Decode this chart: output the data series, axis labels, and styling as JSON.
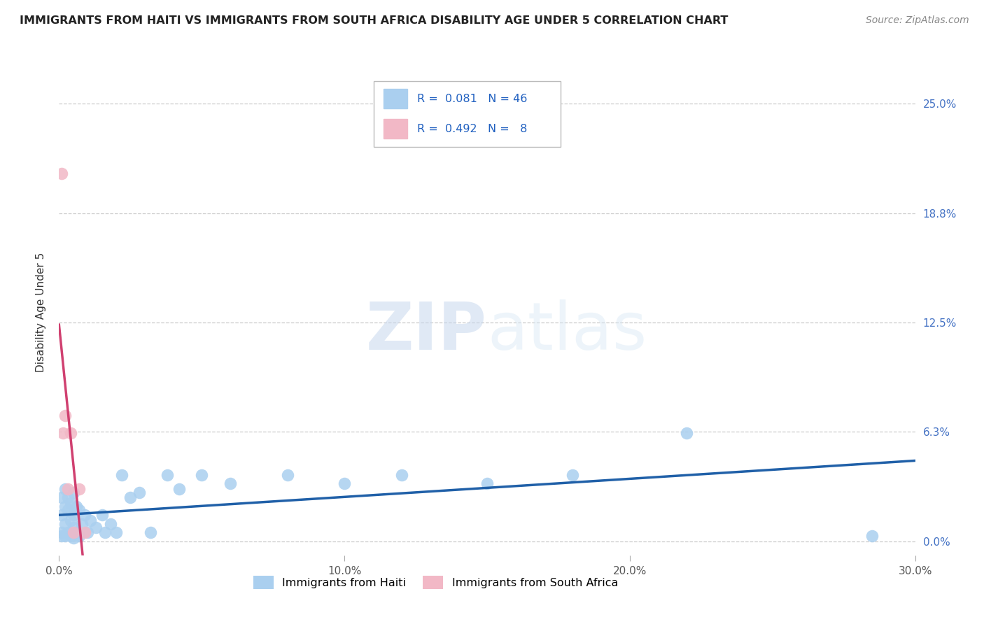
{
  "title": "IMMIGRANTS FROM HAITI VS IMMIGRANTS FROM SOUTH AFRICA DISABILITY AGE UNDER 5 CORRELATION CHART",
  "source": "Source: ZipAtlas.com",
  "ylabel": "Disability Age Under 5",
  "watermark_zip": "ZIP",
  "watermark_atlas": "atlas",
  "xmin": 0.0,
  "xmax": 0.3,
  "ymin": -0.008,
  "ymax": 0.27,
  "yticks": [
    0.0,
    0.0625,
    0.125,
    0.1875,
    0.25
  ],
  "ytick_labels": [
    "0.0%",
    "6.3%",
    "12.5%",
    "18.8%",
    "25.0%"
  ],
  "xticks": [
    0.0,
    0.1,
    0.2,
    0.3
  ],
  "xtick_labels": [
    "0.0%",
    "10.0%",
    "20.0%",
    "30.0%"
  ],
  "haiti_R": 0.081,
  "haiti_N": 46,
  "sa_R": 0.492,
  "sa_N": 8,
  "haiti_color": "#aacfef",
  "sa_color": "#f2b8c6",
  "haiti_line_color": "#2060a8",
  "sa_line_color": "#d04070",
  "haiti_scatter_x": [
    0.001,
    0.001,
    0.001,
    0.001,
    0.002,
    0.002,
    0.002,
    0.002,
    0.003,
    0.003,
    0.003,
    0.004,
    0.004,
    0.004,
    0.005,
    0.005,
    0.005,
    0.005,
    0.006,
    0.006,
    0.007,
    0.007,
    0.008,
    0.009,
    0.01,
    0.011,
    0.013,
    0.015,
    0.016,
    0.018,
    0.02,
    0.022,
    0.025,
    0.028,
    0.032,
    0.038,
    0.042,
    0.05,
    0.06,
    0.08,
    0.1,
    0.12,
    0.15,
    0.18,
    0.22,
    0.285
  ],
  "haiti_scatter_y": [
    0.025,
    0.015,
    0.005,
    0.003,
    0.03,
    0.02,
    0.01,
    0.003,
    0.025,
    0.018,
    0.005,
    0.022,
    0.012,
    0.003,
    0.028,
    0.015,
    0.008,
    0.002,
    0.02,
    0.005,
    0.018,
    0.003,
    0.01,
    0.015,
    0.005,
    0.012,
    0.008,
    0.015,
    0.005,
    0.01,
    0.005,
    0.038,
    0.025,
    0.028,
    0.005,
    0.038,
    0.03,
    0.038,
    0.033,
    0.038,
    0.033,
    0.038,
    0.033,
    0.038,
    0.062,
    0.003
  ],
  "sa_scatter_x": [
    0.0008,
    0.0015,
    0.002,
    0.003,
    0.004,
    0.005,
    0.007,
    0.009
  ],
  "sa_scatter_y": [
    0.21,
    0.062,
    0.072,
    0.03,
    0.062,
    0.005,
    0.03,
    0.005
  ]
}
